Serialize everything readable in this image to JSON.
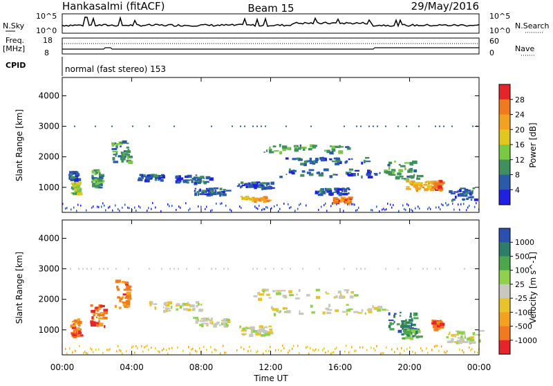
{
  "header": {
    "station": "Hankasalmi (fitACF)",
    "beam": "Beam 15",
    "date": "29/May/2016"
  },
  "status_panels": {
    "nsky_label": "N.Sky",
    "nsearch_label": "N.Search",
    "nsky_ticks": [
      "10^5",
      "10^0"
    ],
    "nsearch_ticks": [
      "10^5",
      "10^0"
    ],
    "freq_label_1": "Freq.",
    "freq_label_2": "[MHz]",
    "freq_ticks": [
      "18",
      "8"
    ],
    "nave_label": "Nave",
    "nave_ticks": [
      "60",
      "0"
    ],
    "cpid_label": "CPID",
    "cpid_text": "normal (fast stereo) 153"
  },
  "axes": {
    "x_ticks": [
      "00:00",
      "04:00",
      "08:00",
      "12:00",
      "16:00",
      "20:00",
      "00:00"
    ],
    "x_label": "Time UT",
    "y_label": "Slant Range [km]",
    "y_ticks": [
      "4000",
      "3000",
      "2000",
      "1000"
    ]
  },
  "colorbars": {
    "power": {
      "label": "Power [dB]",
      "ticks": [
        "28",
        "24",
        "20",
        "16",
        "12",
        "8",
        "4"
      ],
      "colors": [
        "#e8242b",
        "#f27a1e",
        "#f2a21e",
        "#e0c81e",
        "#7ac943",
        "#3f8f5f",
        "#2a5aa8",
        "#2020e0"
      ]
    },
    "velocity": {
      "label": "Velocity [m s^-1]",
      "ticks": [
        "1000",
        "500",
        "100",
        "25",
        "-25",
        "-100",
        "-500",
        "-1000"
      ],
      "colors": [
        "#2a4fb0",
        "#2e7d6a",
        "#4ca64c",
        "#8fd14f",
        "#c8c8c0",
        "#e8c42a",
        "#f2a21e",
        "#f27a1e",
        "#e8242b"
      ]
    }
  },
  "chart_data": [
    {
      "type": "heatmap",
      "name": "power",
      "xlim_hours": [
        0,
        24
      ],
      "ylim_km": [
        180,
        4600
      ],
      "blobs": [
        {
          "t": 0.7,
          "r": 1000,
          "dt": 0.4,
          "dr": 400,
          "c": 4
        },
        {
          "t": 0.6,
          "r": 1400,
          "dt": 0.5,
          "dr": 300,
          "c": 6
        },
        {
          "t": 1.9,
          "r": 1300,
          "dt": 0.5,
          "dr": 600,
          "c": 5
        },
        {
          "t": 3.3,
          "r": 2200,
          "dt": 1.0,
          "dr": 700,
          "c": 5
        },
        {
          "t": 5.0,
          "r": 1350,
          "dt": 1.5,
          "dr": 200,
          "c": 6
        },
        {
          "t": 7.5,
          "r": 1300,
          "dt": 2.0,
          "dr": 250,
          "c": 6
        },
        {
          "t": 8.5,
          "r": 900,
          "dt": 2.0,
          "dr": 200,
          "c": 6
        },
        {
          "t": 11.0,
          "r": 1100,
          "dt": 2.0,
          "dr": 200,
          "c": 6
        },
        {
          "t": 11.0,
          "r": 650,
          "dt": 1.5,
          "dr": 150,
          "c": 2
        },
        {
          "t": 14.0,
          "r": 2300,
          "dt": 5.0,
          "dr": 250,
          "c": 5
        },
        {
          "t": 15.0,
          "r": 1900,
          "dt": 5.0,
          "dr": 200,
          "c": 6
        },
        {
          "t": 15.5,
          "r": 1500,
          "dt": 6.0,
          "dr": 250,
          "c": 6
        },
        {
          "t": 16.0,
          "r": 600,
          "dt": 1.0,
          "dr": 200,
          "c": 1
        },
        {
          "t": 15.5,
          "r": 900,
          "dt": 2.0,
          "dr": 200,
          "c": 6
        },
        {
          "t": 19.5,
          "r": 1600,
          "dt": 2.0,
          "dr": 600,
          "c": 5
        },
        {
          "t": 20.5,
          "r": 1100,
          "dt": 1.5,
          "dr": 300,
          "c": 2
        },
        {
          "t": 21.5,
          "r": 1100,
          "dt": 0.5,
          "dr": 300,
          "c": 1
        },
        {
          "t": 23.0,
          "r": 800,
          "dt": 1.5,
          "dr": 400,
          "c": 6
        }
      ]
    },
    {
      "type": "heatmap",
      "name": "velocity",
      "xlim_hours": [
        0,
        24
      ],
      "ylim_km": [
        180,
        4600
      ],
      "blobs": [
        {
          "t": 0.7,
          "r": 1100,
          "dt": 0.5,
          "dr": 600,
          "c": 7
        },
        {
          "t": 2.0,
          "r": 1500,
          "dt": 0.8,
          "dr": 700,
          "c": 7
        },
        {
          "t": 3.4,
          "r": 2200,
          "dt": 0.8,
          "dr": 900,
          "c": 7
        },
        {
          "t": 6.5,
          "r": 1800,
          "dt": 3.0,
          "dr": 300,
          "c": 4
        },
        {
          "t": 8.5,
          "r": 1300,
          "dt": 2.0,
          "dr": 250,
          "c": 4
        },
        {
          "t": 11.0,
          "r": 1000,
          "dt": 2.0,
          "dr": 300,
          "c": 4
        },
        {
          "t": 14.0,
          "r": 2200,
          "dt": 6.0,
          "dr": 300,
          "c": 4
        },
        {
          "t": 15.5,
          "r": 1700,
          "dt": 7.0,
          "dr": 300,
          "c": 4
        },
        {
          "t": 19.5,
          "r": 1300,
          "dt": 1.5,
          "dr": 600,
          "c": 1
        },
        {
          "t": 20.0,
          "r": 900,
          "dt": 1.0,
          "dr": 300,
          "c": 2
        },
        {
          "t": 21.5,
          "r": 1200,
          "dt": 0.5,
          "dr": 300,
          "c": 7
        },
        {
          "t": 23.0,
          "r": 800,
          "dt": 2.0,
          "dr": 400,
          "c": 4
        }
      ]
    }
  ]
}
